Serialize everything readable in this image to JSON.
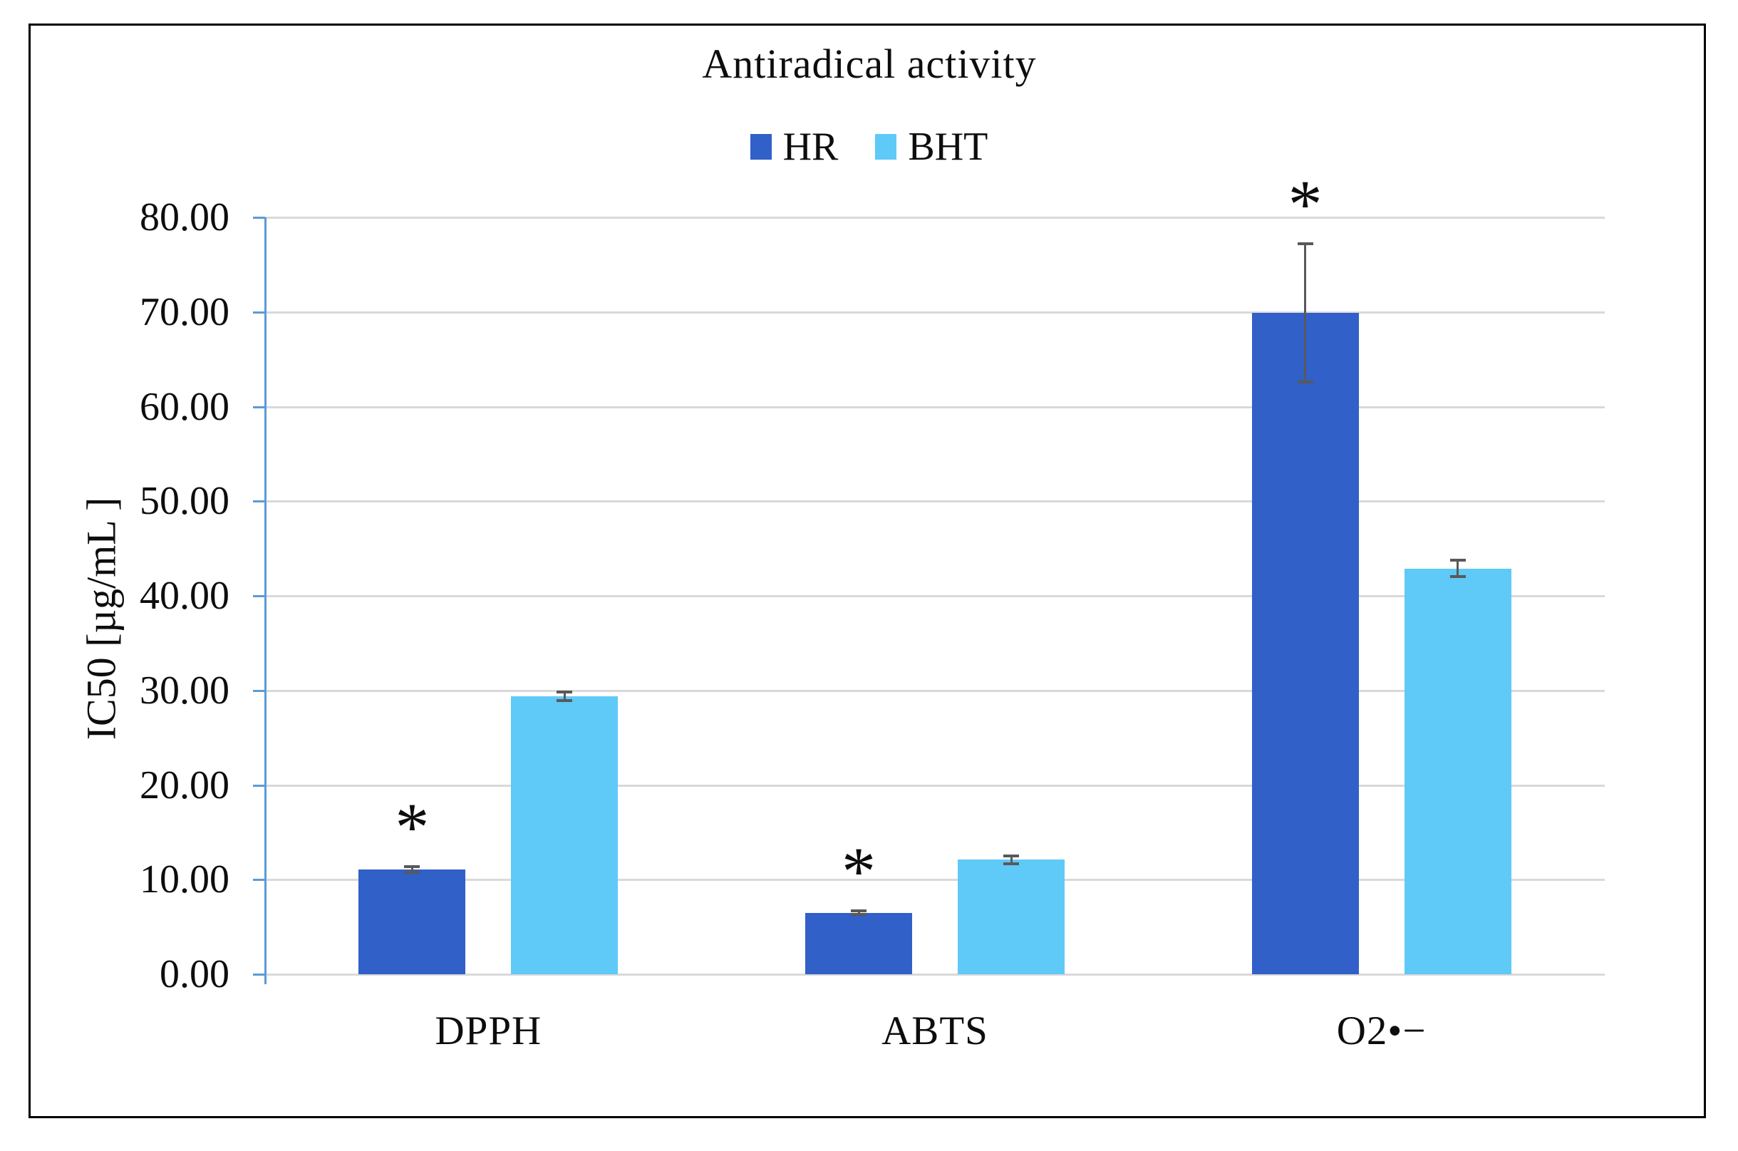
{
  "figure": {
    "title": "Antiradical activity",
    "border_color": "#000000",
    "background": "#ffffff"
  },
  "axes": {
    "y_title": "IC50 [µg/mL ]",
    "y_tick_labels": [
      "0.00",
      "10.00",
      "20.00",
      "30.00",
      "40.00",
      "50.00",
      "60.00",
      "70.00",
      "80.00"
    ],
    "axis_color": "#5b9bd5",
    "gridline_color": "#d9d9d9",
    "error_bar_color": "#595959"
  },
  "chart_data": {
    "type": "bar",
    "title": "Antiradical activity",
    "categories": [
      "DPPH",
      "ABTS",
      "O2•−"
    ],
    "series": [
      {
        "name": "HR",
        "color": "#3060c8",
        "values": [
          11.1,
          6.5,
          69.9
        ],
        "errors": [
          0.3,
          0.2,
          7.3
        ],
        "significant": [
          true,
          true,
          true
        ]
      },
      {
        "name": "BHT",
        "color": "#5fc9f8",
        "values": [
          29.4,
          12.1,
          42.9
        ],
        "errors": [
          0.45,
          0.4,
          0.9
        ],
        "significant": [
          false,
          false,
          false
        ]
      }
    ],
    "significance_marker": "*",
    "xlabel": "",
    "ylabel": "IC50 [µg/mL ]",
    "ylim": [
      0,
      80
    ],
    "ytick_step": 10,
    "grid": true,
    "legend_position": "top-center"
  }
}
